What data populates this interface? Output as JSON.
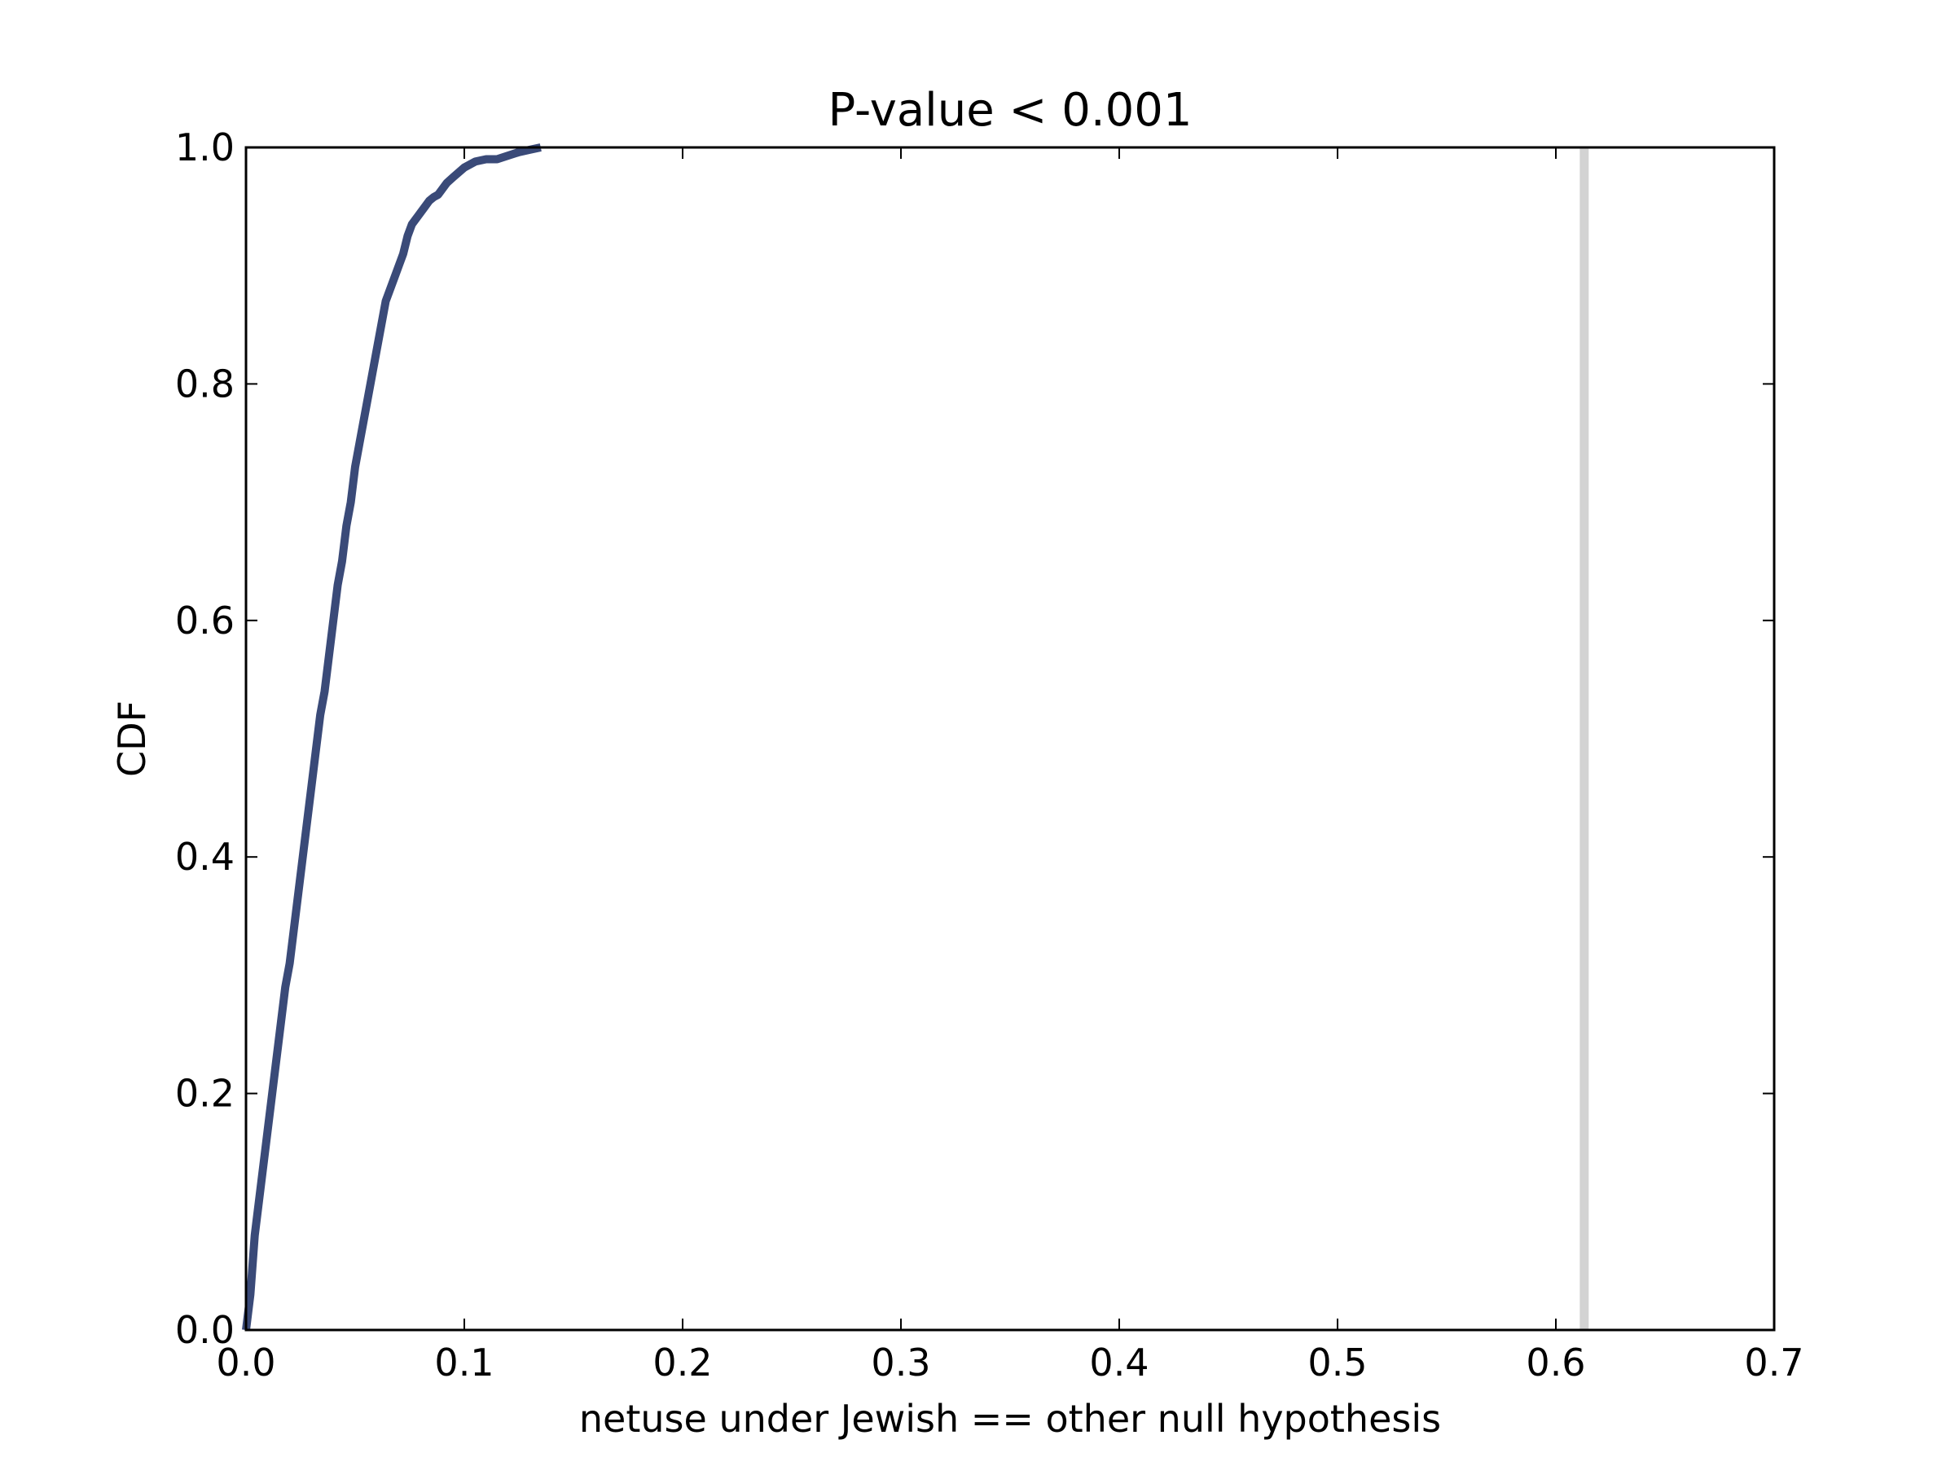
{
  "chart_data": {
    "type": "line",
    "title": "P-value < 0.001",
    "xlabel": "netuse under Jewish == other null hypothesis",
    "ylabel": "CDF",
    "xlim": [
      0.0,
      0.7
    ],
    "ylim": [
      0.0,
      1.0
    ],
    "x_ticks": [
      "0.0",
      "0.1",
      "0.2",
      "0.3",
      "0.4",
      "0.5",
      "0.6",
      "0.7"
    ],
    "y_ticks": [
      "0.0",
      "0.2",
      "0.4",
      "0.6",
      "0.8",
      "1.0"
    ],
    "grid": false,
    "series": [
      {
        "color": "#3a4a78",
        "points": [
          [
            0.0,
            0.0
          ],
          [
            0.002,
            0.03
          ],
          [
            0.004,
            0.08
          ],
          [
            0.006,
            0.11
          ],
          [
            0.008,
            0.14
          ],
          [
            0.01,
            0.17
          ],
          [
            0.012,
            0.2
          ],
          [
            0.014,
            0.23
          ],
          [
            0.016,
            0.26
          ],
          [
            0.018,
            0.29
          ],
          [
            0.02,
            0.31
          ],
          [
            0.022,
            0.34
          ],
          [
            0.024,
            0.37
          ],
          [
            0.026,
            0.4
          ],
          [
            0.028,
            0.43
          ],
          [
            0.03,
            0.46
          ],
          [
            0.032,
            0.49
          ],
          [
            0.034,
            0.52
          ],
          [
            0.036,
            0.54
          ],
          [
            0.038,
            0.57
          ],
          [
            0.04,
            0.6
          ],
          [
            0.042,
            0.63
          ],
          [
            0.044,
            0.65
          ],
          [
            0.046,
            0.68
          ],
          [
            0.048,
            0.7
          ],
          [
            0.05,
            0.73
          ],
          [
            0.052,
            0.75
          ],
          [
            0.054,
            0.77
          ],
          [
            0.056,
            0.79
          ],
          [
            0.058,
            0.81
          ],
          [
            0.06,
            0.83
          ],
          [
            0.062,
            0.85
          ],
          [
            0.064,
            0.87
          ],
          [
            0.066,
            0.88
          ],
          [
            0.068,
            0.89
          ],
          [
            0.07,
            0.9
          ],
          [
            0.072,
            0.91
          ],
          [
            0.074,
            0.925
          ],
          [
            0.076,
            0.935
          ],
          [
            0.078,
            0.94
          ],
          [
            0.08,
            0.945
          ],
          [
            0.082,
            0.95
          ],
          [
            0.084,
            0.955
          ],
          [
            0.086,
            0.958
          ],
          [
            0.088,
            0.96
          ],
          [
            0.09,
            0.965
          ],
          [
            0.092,
            0.97
          ],
          [
            0.095,
            0.975
          ],
          [
            0.1,
            0.983
          ],
          [
            0.105,
            0.988
          ],
          [
            0.11,
            0.99
          ],
          [
            0.115,
            0.99
          ],
          [
            0.12,
            0.993
          ],
          [
            0.125,
            0.996
          ],
          [
            0.13,
            0.998
          ],
          [
            0.135,
            1.0
          ]
        ]
      }
    ],
    "reference_line": {
      "x": 0.613,
      "color": "#d3d3d3"
    }
  }
}
